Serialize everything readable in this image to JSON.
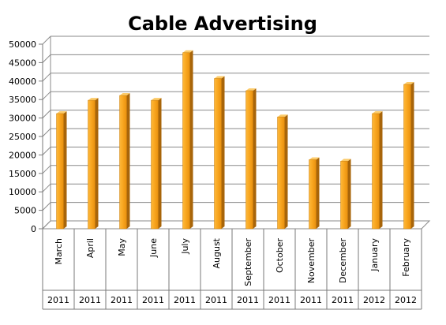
{
  "chart_data": {
    "type": "bar",
    "title": "Cable Advertising",
    "xlabel": "",
    "ylabel": "",
    "ylim": [
      0,
      50000
    ],
    "yticks": [
      "0",
      "5000",
      "10000",
      "15000",
      "20000",
      "25000",
      "30000",
      "35000",
      "40000",
      "45000",
      "50000"
    ],
    "categories": [
      "March",
      "April",
      "May",
      "June",
      "July",
      "August",
      "September",
      "October",
      "November",
      "December",
      "January",
      "February"
    ],
    "years": [
      "2011",
      "2011",
      "2011",
      "2011",
      "2011",
      "2011",
      "2011",
      "2011",
      "2011",
      "2011",
      "2012",
      "2012"
    ],
    "values": [
      31200,
      34800,
      36100,
      34800,
      47700,
      40700,
      37400,
      30300,
      18700,
      18300,
      31200,
      39100
    ],
    "grid": true,
    "legend": "none",
    "bar_color": "#F5A623"
  }
}
